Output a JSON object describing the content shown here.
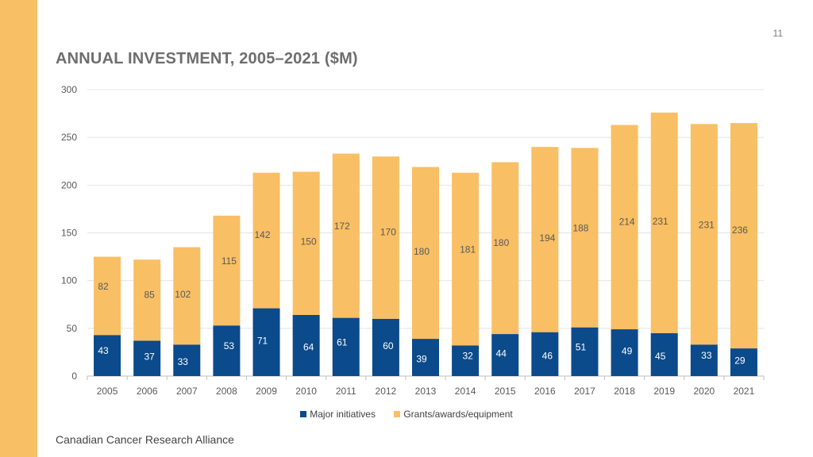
{
  "page": {
    "number": "11",
    "footer": "Canadian Cancer Research Alliance"
  },
  "colors": {
    "major": "#0B4A8B",
    "grants": "#F9BF64",
    "band": "#F9BF64",
    "grid": "#e4e4e4",
    "axis_text": "#595959"
  },
  "chart_data": {
    "type": "bar",
    "stacked": true,
    "title": "ANNUAL INVESTMENT, 2005–2021 ($M)",
    "xlabel": "",
    "ylabel": "",
    "ylim": [
      0,
      300
    ],
    "yticks": [
      0,
      50,
      100,
      150,
      200,
      250,
      300
    ],
    "grid": true,
    "legend_position": "bottom",
    "categories": [
      "2005",
      "2006",
      "2007",
      "2008",
      "2009",
      "2010",
      "2011",
      "2012",
      "2013",
      "2014",
      "2015",
      "2016",
      "2017",
      "2018",
      "2019",
      "2020",
      "2021"
    ],
    "series": [
      {
        "name": "Major initiatives",
        "color_key": "major",
        "values": [
          43,
          37,
          33,
          53,
          71,
          64,
          61,
          60,
          39,
          32,
          44,
          46,
          51,
          49,
          45,
          33,
          29
        ]
      },
      {
        "name": "Grants/awards/equipment",
        "color_key": "grants",
        "values": [
          82,
          85,
          102,
          115,
          142,
          150,
          172,
          170,
          180,
          181,
          180,
          194,
          188,
          214,
          231,
          231,
          236
        ]
      }
    ]
  }
}
